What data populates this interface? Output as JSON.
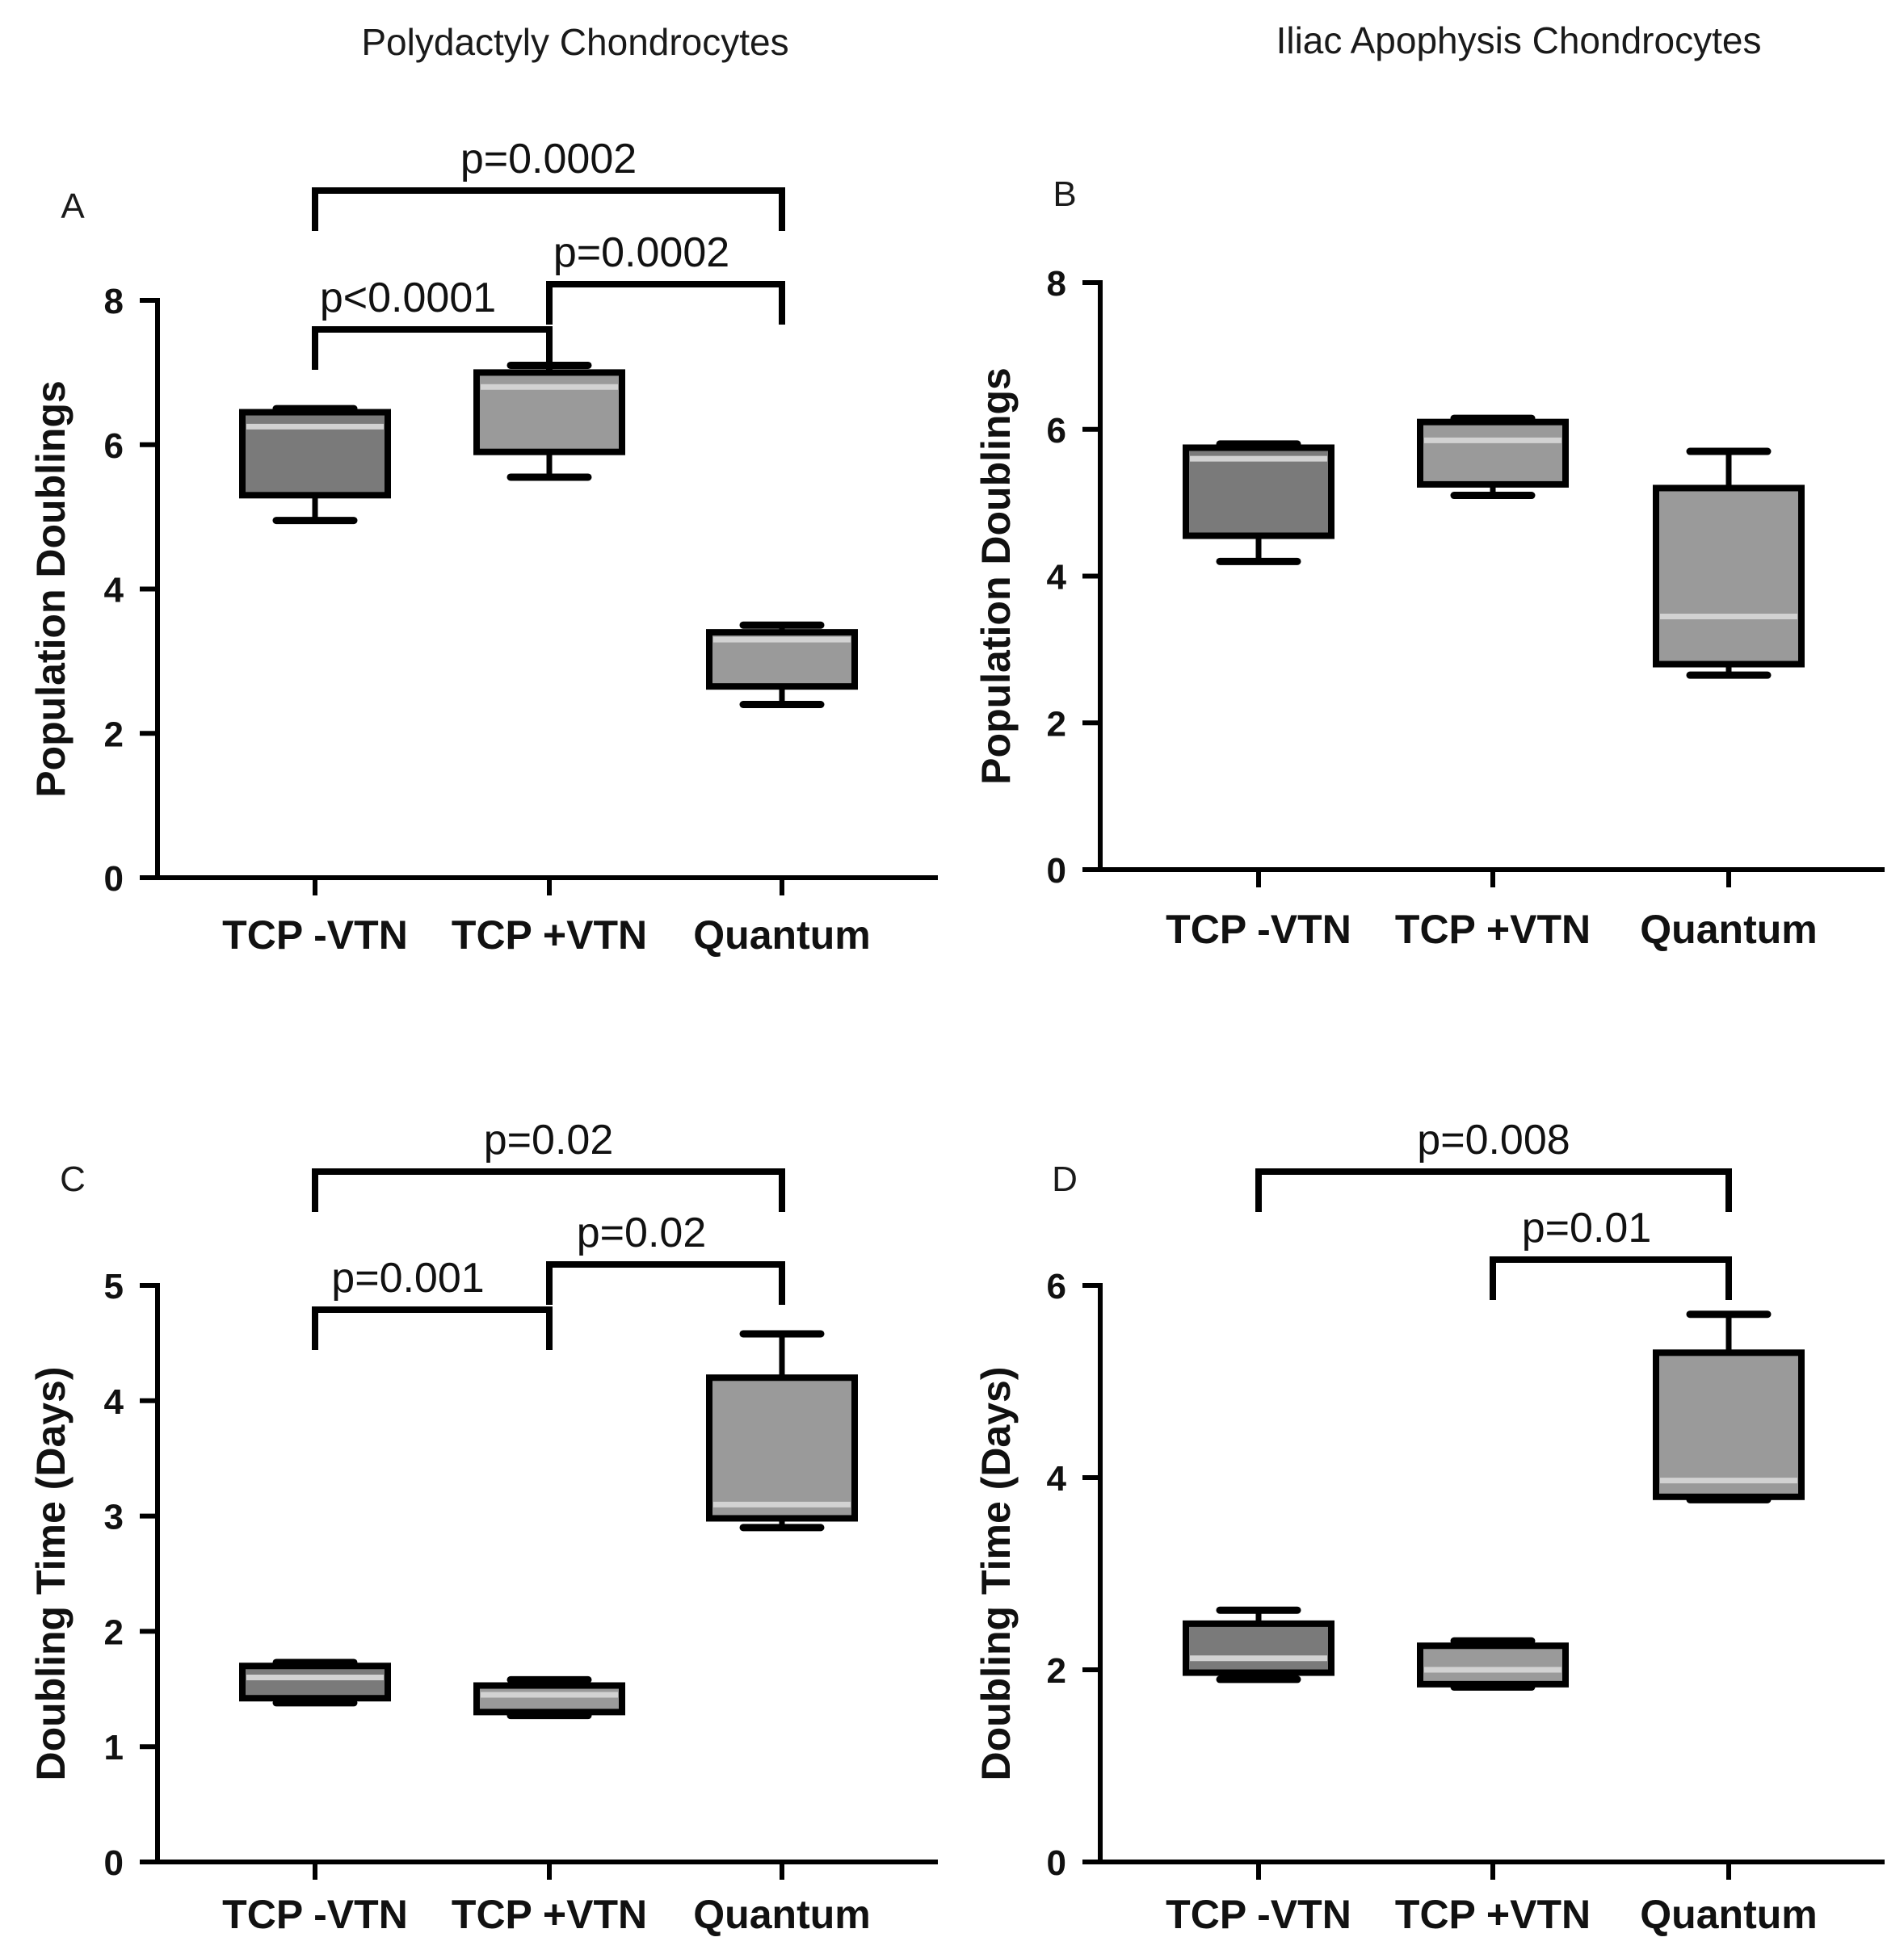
{
  "figure": {
    "col_titles": [
      "Polydactyly Chondrocytes",
      "Iliac Apophysis Chondrocytes"
    ]
  },
  "colors": {
    "box_dark": "#7a7a7a",
    "box_light": "#9a9a9a",
    "median_line": "#d2d2d2",
    "axis": "#000000"
  },
  "chart_data": [
    {
      "panel": "A",
      "type": "box",
      "title": "Polydactyly Chondrocytes",
      "ylabel": "Population Doublings",
      "ylim": [
        0,
        8
      ],
      "yticks": [
        0,
        2,
        4,
        6,
        8
      ],
      "categories": [
        "TCP -VTN",
        "TCP +VTN",
        "Quantum"
      ],
      "boxes": [
        {
          "min": 4.95,
          "q1": 5.3,
          "median": 6.25,
          "q3": 6.45,
          "max": 6.5,
          "fill": "#7a7a7a"
        },
        {
          "min": 5.55,
          "q1": 5.9,
          "median": 6.8,
          "q3": 7.0,
          "max": 7.1,
          "fill": "#9a9a9a"
        },
        {
          "min": 2.4,
          "q1": 2.65,
          "median": 3.3,
          "q3": 3.4,
          "max": 3.5,
          "fill": "#9a9a9a"
        }
      ],
      "comparisons": [
        {
          "from": 0,
          "to": 2,
          "label": "p=0.0002",
          "level": 0
        },
        {
          "from": 1,
          "to": 2,
          "label": "p=0.0002",
          "level": 1
        },
        {
          "from": 0,
          "to": 1,
          "label": "p<0.0001",
          "level": 2
        }
      ]
    },
    {
      "panel": "B",
      "type": "box",
      "title": "Iliac Apophysis Chondrocytes",
      "ylabel": "Population Doublings",
      "ylim": [
        0,
        8
      ],
      "yticks": [
        0,
        2,
        4,
        6,
        8
      ],
      "categories": [
        "TCP -VTN",
        "TCP +VTN",
        "Quantum"
      ],
      "boxes": [
        {
          "min": 4.2,
          "q1": 4.55,
          "median": 5.6,
          "q3": 5.75,
          "max": 5.8,
          "fill": "#7a7a7a"
        },
        {
          "min": 5.1,
          "q1": 5.25,
          "median": 5.85,
          "q3": 6.1,
          "max": 6.15,
          "fill": "#9a9a9a"
        },
        {
          "min": 2.65,
          "q1": 2.8,
          "median": 3.45,
          "q3": 5.2,
          "max": 5.7,
          "fill": "#9a9a9a"
        }
      ],
      "comparisons": []
    },
    {
      "panel": "C",
      "type": "box",
      "title": "",
      "ylabel": "Doubling Time (Days)",
      "ylim": [
        0,
        5
      ],
      "yticks": [
        0,
        1,
        2,
        3,
        4,
        5
      ],
      "categories": [
        "TCP -VTN",
        "TCP +VTN",
        "Quantum"
      ],
      "boxes": [
        {
          "min": 1.38,
          "q1": 1.42,
          "median": 1.6,
          "q3": 1.7,
          "max": 1.73,
          "fill": "#7a7a7a"
        },
        {
          "min": 1.27,
          "q1": 1.3,
          "median": 1.45,
          "q3": 1.53,
          "max": 1.58,
          "fill": "#9a9a9a"
        },
        {
          "min": 2.9,
          "q1": 2.98,
          "median": 3.1,
          "q3": 4.2,
          "max": 4.58,
          "fill": "#9a9a9a"
        }
      ],
      "comparisons": [
        {
          "from": 0,
          "to": 2,
          "label": "p=0.02",
          "level": 0
        },
        {
          "from": 1,
          "to": 2,
          "label": "p=0.02",
          "level": 1
        },
        {
          "from": 0,
          "to": 1,
          "label": "p=0.001",
          "level": 2
        }
      ]
    },
    {
      "panel": "D",
      "type": "box",
      "title": "",
      "ylabel": "Doubling Time (Days)",
      "ylim": [
        0,
        6
      ],
      "yticks": [
        0,
        2,
        4,
        6
      ],
      "categories": [
        "TCP -VTN",
        "TCP +VTN",
        "Quantum"
      ],
      "boxes": [
        {
          "min": 1.9,
          "q1": 1.97,
          "median": 2.12,
          "q3": 2.48,
          "max": 2.62,
          "fill": "#7a7a7a"
        },
        {
          "min": 1.82,
          "q1": 1.85,
          "median": 2.0,
          "q3": 2.25,
          "max": 2.3,
          "fill": "#9a9a9a"
        },
        {
          "min": 3.77,
          "q1": 3.8,
          "median": 3.97,
          "q3": 5.3,
          "max": 5.7,
          "fill": "#9a9a9a"
        }
      ],
      "comparisons": [
        {
          "from": 0,
          "to": 2,
          "label": "p=0.008",
          "level": 0
        },
        {
          "from": 1,
          "to": 2,
          "label": "p=0.01",
          "level": 1
        }
      ]
    }
  ]
}
